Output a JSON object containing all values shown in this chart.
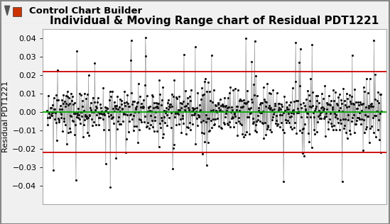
{
  "title": "Individual & Moving Range chart of Residual PDT1221",
  "header": "Control Chart Builder",
  "ylabel": "Residual PDT1221",
  "ylim": [
    -0.05,
    0.045
  ],
  "yticks": [
    -0.04,
    -0.03,
    -0.02,
    -0.01,
    0.0,
    0.01,
    0.02,
    0.03,
    0.04
  ],
  "ucl": 0.022,
  "lcl": -0.022,
  "cl": 0.0,
  "n_points": 800,
  "line_color": "#888888",
  "dot_color": "#111111",
  "ucl_color": "#cc0000",
  "lcl_color": "#cc0000",
  "cl_color": "#00aa00",
  "bg_color": "#ffffff",
  "header_bg": "#e8e8e8",
  "seed": 7,
  "sigma": 0.007,
  "spike_prob": 0.04,
  "spike_scale_min": 3.0,
  "spike_scale_max": 6.0,
  "title_fontsize": 11,
  "axis_fontsize": 8,
  "dot_size": 5.0,
  "line_width": 0.5
}
